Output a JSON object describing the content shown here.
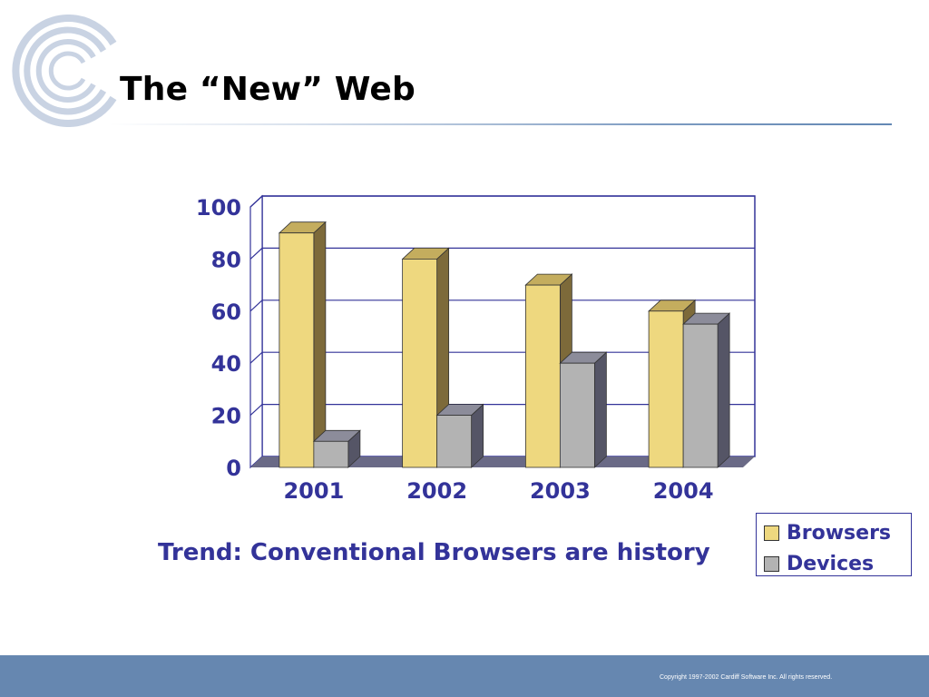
{
  "slide": {
    "title": "The “New” Web",
    "subtitle": "Trend: Conventional Browsers are history",
    "copyright": "Copyright 1997-2002 Cardiff Software Inc. All rights reserved."
  },
  "logo": {
    "icon": "cardiff-logo-icon"
  },
  "colors": {
    "title": "#000000",
    "text_accent": "#333399",
    "footer_bar": "#6687b0",
    "browsers_front": "#eed87f",
    "browsers_side": "#7d6a3a",
    "browsers_top": "#c4ad5e",
    "devices_front": "#b3b3b3",
    "devices_side": "#555566",
    "devices_top": "#8c8c9a",
    "floor": "#6a6a86",
    "grid": "#333399"
  },
  "chart_data": {
    "type": "bar",
    "style": "3d-clustered-column",
    "categories": [
      "2001",
      "2002",
      "2003",
      "2004"
    ],
    "series": [
      {
        "name": "Browsers",
        "values": [
          90,
          80,
          70,
          60
        ]
      },
      {
        "name": "Devices",
        "values": [
          10,
          20,
          40,
          55
        ]
      }
    ],
    "ylim": [
      0,
      100
    ],
    "yticks": [
      "0",
      "20",
      "40",
      "60",
      "80",
      "100"
    ],
    "grid": true,
    "legend": "bottom-right"
  }
}
